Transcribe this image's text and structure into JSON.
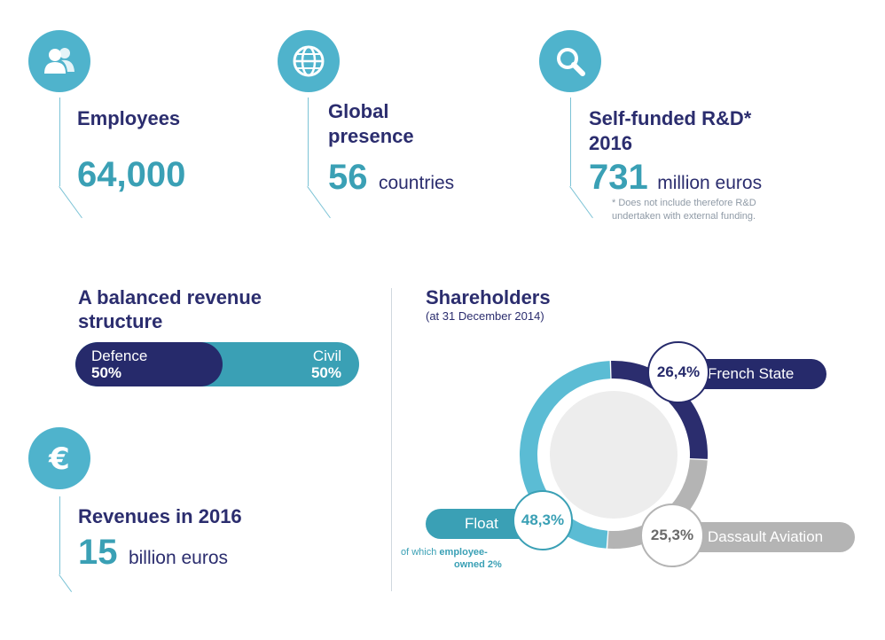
{
  "kpis": {
    "employees": {
      "icon": "people-icon",
      "title": "Employees",
      "value": "64,000"
    },
    "presence": {
      "icon": "globe-icon",
      "title_line1": "Global",
      "title_line2": "presence",
      "value": "56",
      "unit": "countries"
    },
    "rnd": {
      "icon": "magnifier-icon",
      "title_line1": "Self-funded R&D*",
      "title_line2": "2016",
      "value": "731",
      "unit": "million euros",
      "note_line1": "* Does not include therefore R&D",
      "note_line2": "undertaken with external funding."
    },
    "revenues": {
      "icon": "euro-icon",
      "title": "Revenues in 2016",
      "value": "15",
      "unit": "billion euros"
    }
  },
  "revenue_structure": {
    "title_line1": "A balanced revenue",
    "title_line2": "structure"
  },
  "shareholders": {
    "title": "Shareholders",
    "subtitle": "(at 31 December 2014)",
    "float_note_line1_a": "of which",
    "float_note_line1_b": "employee-",
    "float_note_line2": "owned 2%"
  },
  "colors": {
    "navy": "#262a6b",
    "teal": "#3aa0b5",
    "light_teal": "#5bbcd4",
    "grey": "#b4b4b4",
    "icon_bg": "#4fb3cc"
  },
  "chart_data": [
    {
      "type": "bar",
      "stacked": true,
      "orientation": "horizontal",
      "series": [
        {
          "name": "Defence",
          "label": "50%",
          "value": 50,
          "color": "#262a6b"
        },
        {
          "name": "Civil",
          "label": "50%",
          "value": 50,
          "color": "#3aa0b5"
        }
      ]
    },
    {
      "type": "pie",
      "donut": true,
      "slices": [
        {
          "name": "French State",
          "value": 26.4,
          "label": "26,4%",
          "color": "#2b2d6e"
        },
        {
          "name": "Dassault Aviation",
          "value": 25.3,
          "label": "25,3%",
          "color": "#b4b4b4"
        },
        {
          "name": "Float",
          "value": 48.3,
          "label": "48,3%",
          "color": "#5bbcd4"
        }
      ]
    }
  ]
}
